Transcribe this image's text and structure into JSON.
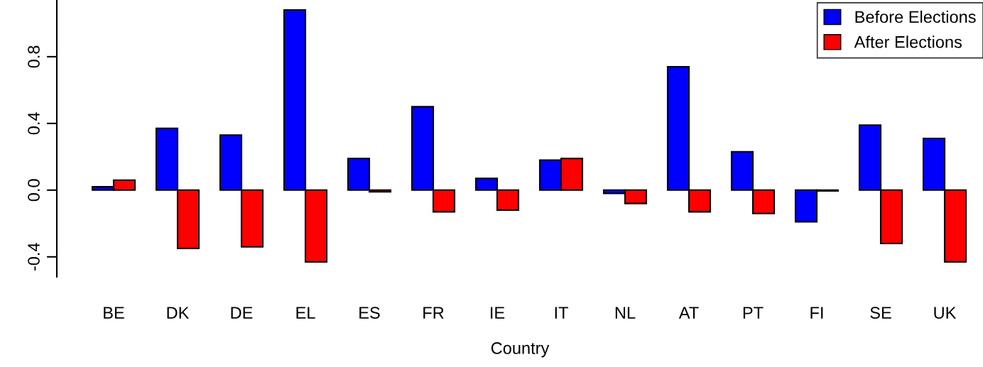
{
  "chart_data": {
    "type": "bar",
    "xlabel": "Country",
    "categories": [
      "BE",
      "DK",
      "DE",
      "EL",
      "ES",
      "FR",
      "IE",
      "IT",
      "NL",
      "AT",
      "PT",
      "FI",
      "SE",
      "UK"
    ],
    "series": [
      {
        "name": "Before Elections",
        "color": "#0000ff",
        "values": [
          0.02,
          0.37,
          0.33,
          1.08,
          0.19,
          0.5,
          0.07,
          0.18,
          -0.02,
          0.74,
          0.23,
          -0.19,
          0.39,
          0.31
        ]
      },
      {
        "name": "After Elections",
        "color": "#ff0000",
        "values": [
          0.06,
          -0.35,
          -0.34,
          -0.43,
          -0.01,
          -0.13,
          -0.12,
          0.19,
          -0.08,
          -0.13,
          -0.14,
          -0.005,
          -0.32,
          -0.43
        ]
      }
    ],
    "ylim": [
      -0.52,
      1.14
    ],
    "yticks": [
      {
        "value": -0.4,
        "label": "-0.4"
      },
      {
        "value": 0.0,
        "label": "0.0"
      },
      {
        "value": 0.4,
        "label": "0.4"
      },
      {
        "value": 0.8,
        "label": "0.8"
      }
    ],
    "legend": "top right",
    "grid": false
  }
}
